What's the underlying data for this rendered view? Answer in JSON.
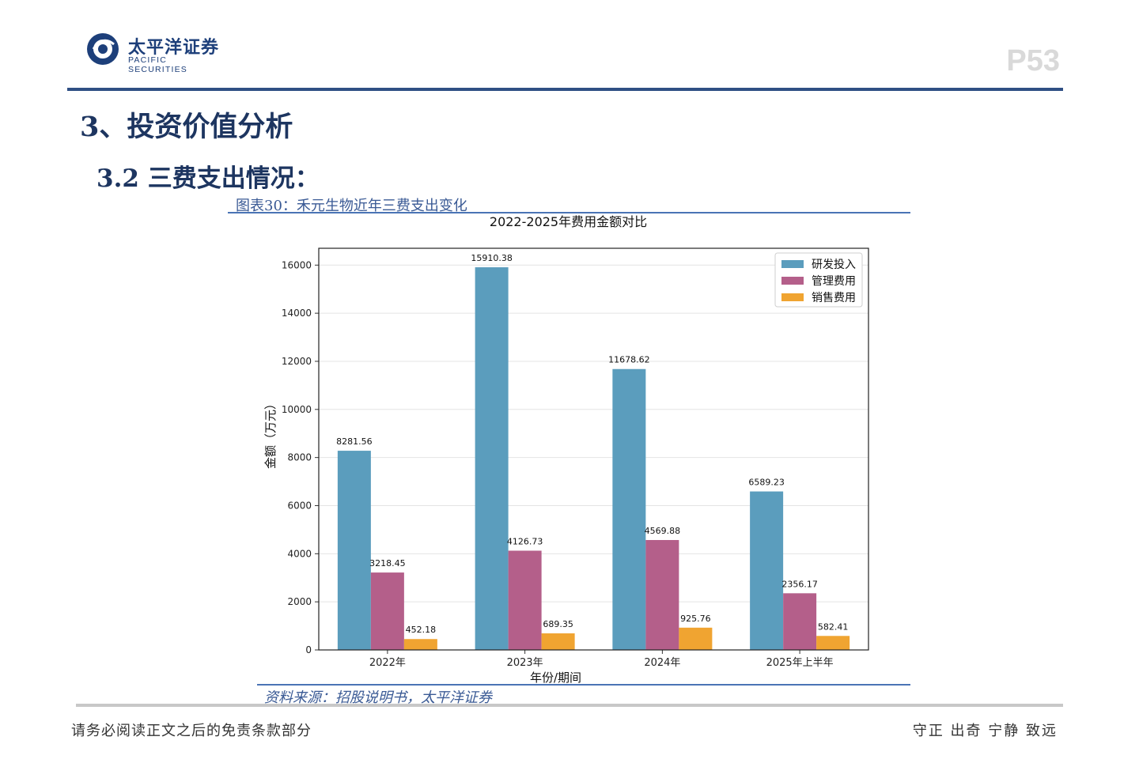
{
  "header": {
    "logo_cn": "太平洋证券",
    "logo_en": "PACIFIC SECURITIES",
    "page_number": "P53"
  },
  "section": {
    "heading": "3、投资价值分析",
    "subheading": "3.2 三费支出情况："
  },
  "figure": {
    "caption": "图表30：禾元生物近年三费支出变化",
    "source": "资料来源：招股说明书，太平洋证券"
  },
  "footer": {
    "disclaimer": "请务必阅读正文之后的免责条款部分",
    "motto": "守正 出奇 宁静 致远"
  },
  "colors": {
    "brand_navy": "#1d3560",
    "rule_blue": "#4a74b5",
    "logo_red": "#d42b2b"
  },
  "chart_data": {
    "type": "bar",
    "title": "2022-2025年费用金额对比",
    "xlabel": "年份/期间",
    "ylabel": "金额（万元）",
    "categories": [
      "2022年",
      "2023年",
      "2024年",
      "2025年上半年"
    ],
    "series": [
      {
        "name": "研发投入",
        "color": "#5b9dbd",
        "values": [
          8281.56,
          15910.38,
          11678.62,
          6589.23
        ]
      },
      {
        "name": "管理费用",
        "color": "#b45f8a",
        "values": [
          3218.45,
          4126.73,
          4569.88,
          2356.17
        ]
      },
      {
        "name": "销售费用",
        "color": "#f0a431",
        "values": [
          452.18,
          689.35,
          925.76,
          582.41
        ]
      }
    ],
    "ylim": [
      0,
      16700
    ],
    "yticks": [
      0,
      2000,
      4000,
      6000,
      8000,
      10000,
      12000,
      14000,
      16000
    ],
    "grid": true,
    "legend": "top-right"
  }
}
